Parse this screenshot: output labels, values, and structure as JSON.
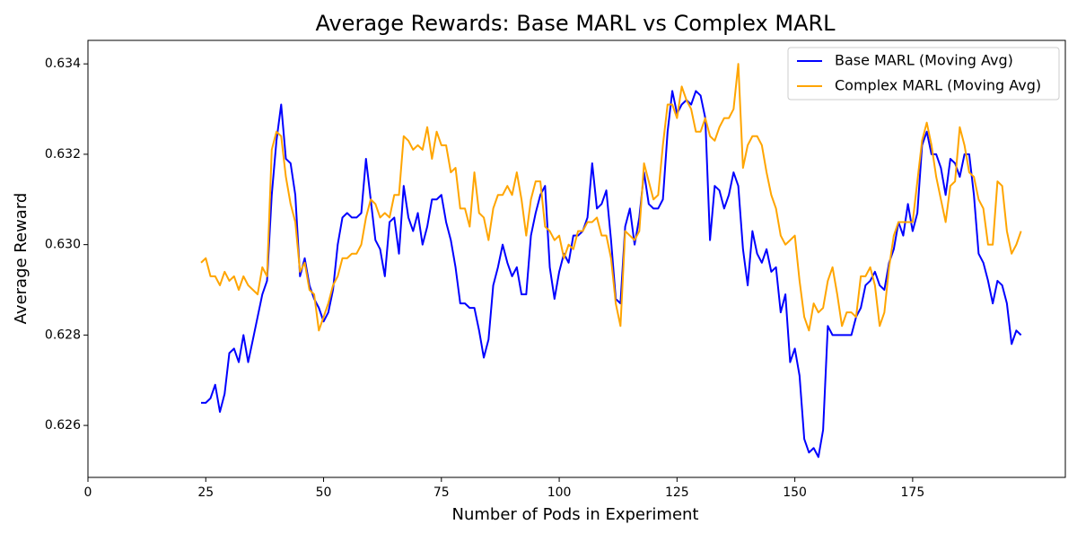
{
  "chart_data": {
    "type": "line",
    "title": "Average Rewards: Base MARL vs Complex MARL",
    "xlabel": "Number of Pods in Experiment",
    "ylabel": "Average Reward",
    "x": [
      24,
      25,
      26,
      27,
      28,
      29,
      30,
      31,
      32,
      33,
      34,
      35,
      36,
      37,
      38,
      39,
      40,
      41,
      42,
      43,
      44,
      45,
      46,
      47,
      48,
      49,
      50,
      51,
      52,
      53,
      54,
      55,
      56,
      57,
      58,
      59,
      60,
      61,
      62,
      63,
      64,
      65,
      66,
      67,
      68,
      69,
      70,
      71,
      72,
      73,
      74,
      75,
      76,
      77,
      78,
      79,
      80,
      81,
      82,
      83,
      84,
      85,
      86,
      87,
      88,
      89,
      90,
      91,
      92,
      93,
      94,
      95,
      96,
      97,
      98,
      99,
      100,
      101,
      102,
      103,
      104,
      105,
      106,
      107,
      108,
      109,
      110,
      111,
      112,
      113,
      114,
      115,
      116,
      117,
      118,
      119,
      120,
      121,
      122,
      123,
      124,
      125,
      126,
      127,
      128,
      129,
      130,
      131,
      132,
      133,
      134,
      135,
      136,
      137,
      138,
      139,
      140,
      141,
      142,
      143,
      144,
      145,
      146,
      147,
      148,
      149,
      150,
      151,
      152,
      153,
      154,
      155,
      156,
      157,
      158,
      159,
      160,
      161,
      162,
      163,
      164,
      165,
      166,
      167,
      168,
      169,
      170,
      171,
      172,
      173,
      174,
      175,
      176,
      177,
      178,
      179,
      180,
      181,
      182,
      183,
      184,
      185,
      186,
      187,
      188,
      189,
      190,
      191,
      192,
      193,
      194,
      195,
      196,
      197,
      198
    ],
    "series": [
      {
        "name": "Base MARL (Moving Avg)",
        "color": "#0000ff",
        "values": [
          0.6265,
          0.6265,
          0.6266,
          0.6269,
          0.6263,
          0.6267,
          0.6276,
          0.6277,
          0.6274,
          0.628,
          0.6274,
          0.6279,
          0.6284,
          0.6289,
          0.6292,
          0.6311,
          0.6323,
          0.6331,
          0.6319,
          0.6318,
          0.6311,
          0.6293,
          0.6297,
          0.6291,
          0.6288,
          0.6286,
          0.6283,
          0.6285,
          0.629,
          0.63,
          0.6306,
          0.6307,
          0.6306,
          0.6306,
          0.6307,
          0.6319,
          0.631,
          0.6301,
          0.6299,
          0.6293,
          0.6305,
          0.6306,
          0.6298,
          0.6313,
          0.6306,
          0.6303,
          0.6307,
          0.63,
          0.6304,
          0.631,
          0.631,
          0.6311,
          0.6305,
          0.6301,
          0.6295,
          0.6287,
          0.6287,
          0.6286,
          0.6286,
          0.6281,
          0.6275,
          0.6279,
          0.6291,
          0.6295,
          0.63,
          0.6296,
          0.6293,
          0.6295,
          0.6289,
          0.6289,
          0.6302,
          0.6307,
          0.6311,
          0.6313,
          0.6295,
          0.6288,
          0.6294,
          0.6298,
          0.6296,
          0.6302,
          0.6302,
          0.6303,
          0.6306,
          0.6318,
          0.6308,
          0.6309,
          0.6312,
          0.6301,
          0.6288,
          0.6287,
          0.6304,
          0.6308,
          0.63,
          0.6306,
          0.6316,
          0.6309,
          0.6308,
          0.6308,
          0.631,
          0.6325,
          0.6334,
          0.6329,
          0.6331,
          0.6332,
          0.6331,
          0.6334,
          0.6333,
          0.6328,
          0.6301,
          0.6313,
          0.6312,
          0.6308,
          0.6311,
          0.6316,
          0.6313,
          0.6299,
          0.6291,
          0.6303,
          0.6298,
          0.6296,
          0.6299,
          0.6294,
          0.6295,
          0.6285,
          0.6289,
          0.6274,
          0.6277,
          0.6271,
          0.6257,
          0.6254,
          0.6255,
          0.6253,
          0.6259,
          0.6282,
          0.628,
          0.628,
          0.628,
          0.628,
          0.628,
          0.6284,
          0.6286,
          0.6291,
          0.6292,
          0.6294,
          0.6291,
          0.629,
          0.6296,
          0.6299,
          0.6305,
          0.6302,
          0.6309,
          0.6303,
          0.6307,
          0.6322,
          0.6325,
          0.632,
          0.632,
          0.6317,
          0.6311,
          0.6319,
          0.6318,
          0.6315,
          0.632,
          0.632,
          0.6311,
          0.6298,
          0.6296,
          0.6292,
          0.6287,
          0.6292,
          0.6291,
          0.6287,
          0.6278,
          0.6281,
          0.628
        ]
      },
      {
        "name": "Complex MARL (Moving Avg)",
        "color": "#ffa500",
        "values": [
          0.6296,
          0.6297,
          0.6293,
          0.6293,
          0.6291,
          0.6294,
          0.6292,
          0.6293,
          0.629,
          0.6293,
          0.6291,
          0.629,
          0.6289,
          0.6295,
          0.6293,
          0.6321,
          0.6325,
          0.6324,
          0.6315,
          0.6309,
          0.6305,
          0.6294,
          0.6296,
          0.629,
          0.6289,
          0.6281,
          0.6284,
          0.6287,
          0.6291,
          0.6293,
          0.6297,
          0.6297,
          0.6298,
          0.6298,
          0.63,
          0.6306,
          0.631,
          0.6309,
          0.6306,
          0.6307,
          0.6306,
          0.6311,
          0.6311,
          0.6324,
          0.6323,
          0.6321,
          0.6322,
          0.6321,
          0.6326,
          0.6319,
          0.6325,
          0.6322,
          0.6322,
          0.6316,
          0.6317,
          0.6308,
          0.6308,
          0.6304,
          0.6316,
          0.6307,
          0.6306,
          0.6301,
          0.6308,
          0.6311,
          0.6311,
          0.6313,
          0.6311,
          0.6316,
          0.631,
          0.6302,
          0.631,
          0.6314,
          0.6314,
          0.6304,
          0.6303,
          0.6301,
          0.6302,
          0.6297,
          0.63,
          0.6299,
          0.6303,
          0.6303,
          0.6305,
          0.6305,
          0.6306,
          0.6302,
          0.6302,
          0.6297,
          0.6287,
          0.6282,
          0.6303,
          0.6302,
          0.6301,
          0.6303,
          0.6318,
          0.6314,
          0.631,
          0.6311,
          0.6322,
          0.6331,
          0.6331,
          0.6328,
          0.6335,
          0.6332,
          0.633,
          0.6325,
          0.6325,
          0.6328,
          0.6324,
          0.6323,
          0.6326,
          0.6328,
          0.6328,
          0.633,
          0.634,
          0.6317,
          0.6322,
          0.6324,
          0.6324,
          0.6322,
          0.6316,
          0.6311,
          0.6308,
          0.6302,
          0.63,
          0.6301,
          0.6302,
          0.6292,
          0.6284,
          0.6281,
          0.6287,
          0.6285,
          0.6286,
          0.6292,
          0.6295,
          0.6289,
          0.6282,
          0.6285,
          0.6285,
          0.6284,
          0.6293,
          0.6293,
          0.6295,
          0.6291,
          0.6282,
          0.6285,
          0.6295,
          0.6302,
          0.6305,
          0.6305,
          0.6305,
          0.6305,
          0.6314,
          0.6323,
          0.6327,
          0.6322,
          0.6315,
          0.631,
          0.6305,
          0.6313,
          0.6314,
          0.6326,
          0.6322,
          0.6316,
          0.6315,
          0.631,
          0.6308,
          0.63,
          0.63,
          0.6314,
          0.6313,
          0.6303,
          0.6298,
          0.63,
          0.6303
        ]
      }
    ],
    "xlim": [
      0,
      207.4
    ],
    "xticks": [
      0,
      25,
      50,
      75,
      100,
      125,
      150,
      175
    ],
    "ylim": [
      0.62485,
      0.63452
    ],
    "yticks": [
      0.626,
      0.628,
      {
        "value": 0.63,
        "label": "0.630"
      },
      0.632,
      0.634
    ],
    "legend": "upper right"
  }
}
